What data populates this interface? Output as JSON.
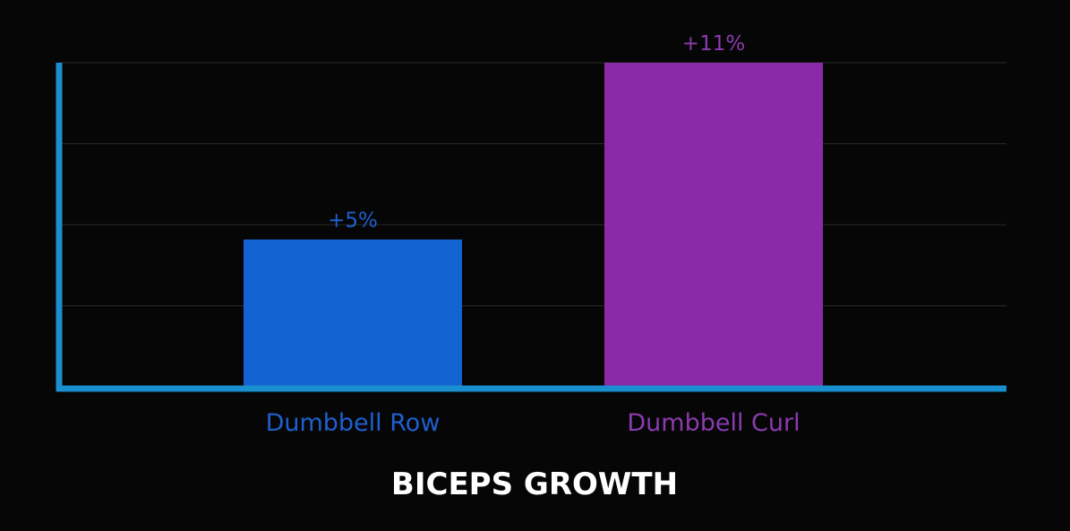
{
  "chart_data": {
    "type": "bar",
    "title": "BICEPS GROWTH",
    "categories": [
      "Dumbbell Row",
      "Dumbbell Curl"
    ],
    "values": [
      5,
      11
    ],
    "value_labels": [
      "+5%",
      "+11%"
    ],
    "unit": "%",
    "ylim": [
      0,
      11
    ],
    "grid": true,
    "colors": {
      "background": "#060606",
      "axis": "#1a8fcf",
      "grid": "#2a2a2a",
      "bars": [
        "#1463d2",
        "#8b2aa8"
      ],
      "labels": [
        "#1f5fcf",
        "#8b3bb0"
      ],
      "title": "#ffffff"
    }
  }
}
